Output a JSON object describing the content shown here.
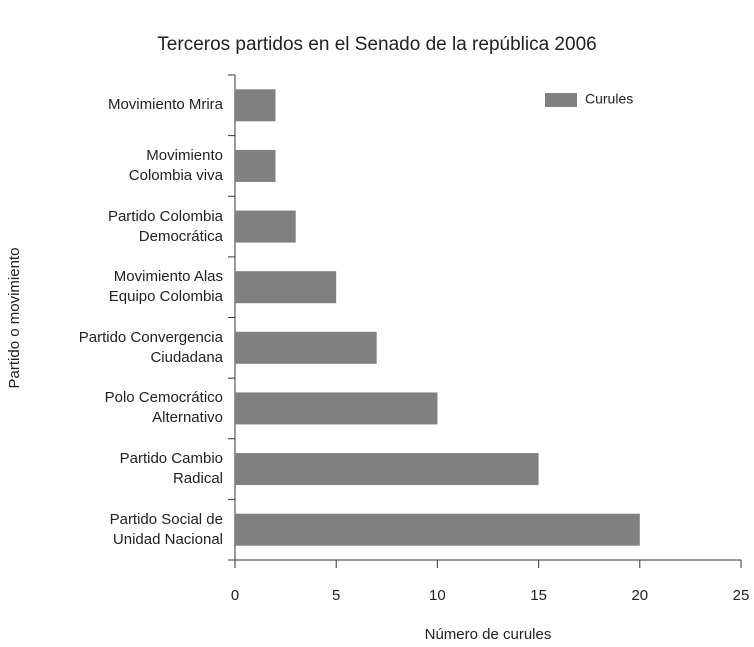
{
  "chart_data": {
    "type": "bar",
    "orientation": "horizontal",
    "title": "Terceros partidos en el Senado de la república 2006",
    "categories": [
      "Movimiento Mrira",
      "Movimiento\nColombia viva",
      "Partido Colombia\nDemocrática",
      "Movimiento Alas\nEquipo Colombia",
      "Partido Convergencia\nCiudadana",
      "Polo Cemocrático\nAlternativo",
      "Partido Cambio\nRadical",
      "Partido Social de\nUnidad Nacional"
    ],
    "series": [
      {
        "name": "Curules",
        "color": "#808080",
        "values": [
          2,
          2,
          3,
          5,
          7,
          10,
          15,
          20
        ]
      }
    ],
    "xlim": [
      0,
      25
    ],
    "xticks": [
      0,
      5,
      10,
      15,
      20,
      25
    ],
    "x_label": "Número de curules",
    "y_label": "Partido o movimiento",
    "legend": "upper right",
    "grid": false
  }
}
